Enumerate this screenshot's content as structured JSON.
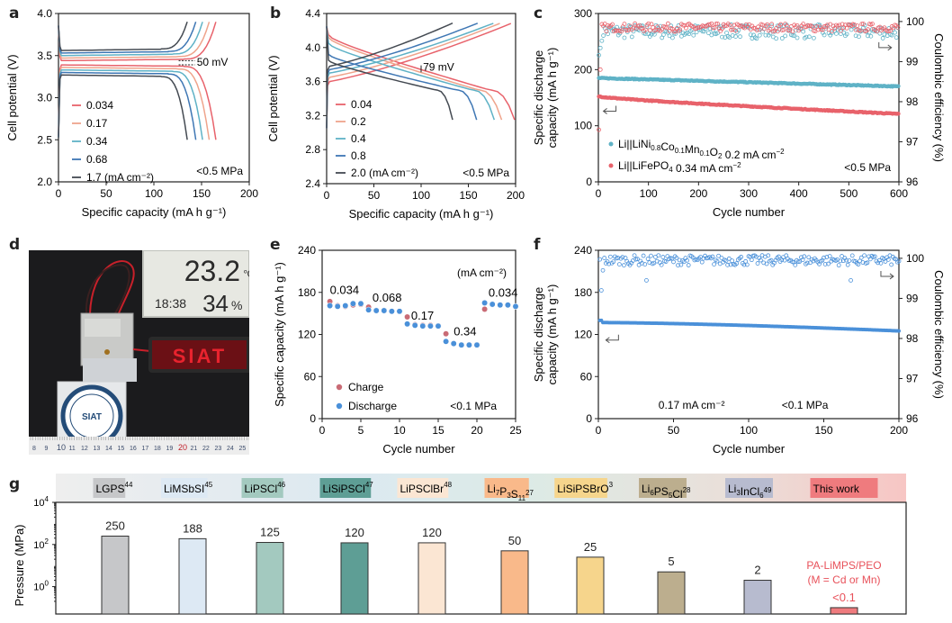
{
  "panel_labels": {
    "a": "a",
    "b": "b",
    "c": "c",
    "d": "d",
    "e": "e",
    "f": "f",
    "g": "g"
  },
  "chart_data": [
    {
      "id": "a",
      "type": "line",
      "xlabel": "Specific capacity (mA h g⁻¹)",
      "ylabel": "Cell potential (V)",
      "xlim": [
        0,
        200
      ],
      "ylim": [
        2.0,
        4.0
      ],
      "xticks": [
        0,
        50,
        100,
        150,
        200
      ],
      "yticks": [
        2.0,
        2.5,
        3.0,
        3.5,
        4.0
      ],
      "ytick_labels": [
        "2.0",
        "2.5",
        "3.0",
        "3.5",
        "4.0"
      ],
      "legend_position": "bottom-left",
      "legend_unit": "(mA cm⁻²)",
      "condition": "<0.5 MPa",
      "annotation": "50 mV",
      "series": [
        {
          "name": "0.034",
          "color": "#e8626b",
          "capacity": 165,
          "charge_plateau": 3.44,
          "discharge_plateau": 3.39
        },
        {
          "name": "0.17",
          "color": "#efa48c",
          "capacity": 158,
          "charge_plateau": 3.47,
          "discharge_plateau": 3.36
        },
        {
          "name": "0.34",
          "color": "#5fb2c6",
          "capacity": 151,
          "charge_plateau": 3.5,
          "discharge_plateau": 3.33
        },
        {
          "name": "0.68",
          "color": "#3f77b4",
          "capacity": 144,
          "charge_plateau": 3.53,
          "discharge_plateau": 3.3
        },
        {
          "name": "1.7",
          "color": "#444a52",
          "capacity": 135,
          "charge_plateau": 3.56,
          "discharge_plateau": 3.27
        }
      ]
    },
    {
      "id": "b",
      "type": "line",
      "xlabel": "Specific capacity (mA h g⁻¹)",
      "ylabel": "Cell potential (V)",
      "xlim": [
        0,
        200
      ],
      "ylim": [
        2.4,
        4.4
      ],
      "xticks": [
        0,
        50,
        100,
        150,
        200
      ],
      "yticks": [
        2.4,
        2.8,
        3.2,
        3.6,
        4.0,
        4.4
      ],
      "ytick_labels": [
        "2.4",
        "2.8",
        "3.2",
        "3.6",
        "4.0",
        "4.4"
      ],
      "legend_position": "bottom-left",
      "legend_unit": "(mA cm⁻²)",
      "condition": "<0.5 MPa",
      "annotation": "79 mV",
      "series": [
        {
          "name": "0.04",
          "color": "#e8626b",
          "charge_capacity": 199,
          "discharge_capacity": 203,
          "charge_start": 3.6,
          "discharge_start": 4.15
        },
        {
          "name": "0.2",
          "color": "#efa48c",
          "charge_capacity": 187,
          "discharge_capacity": 189,
          "charge_start": 3.65,
          "discharge_start": 4.12
        },
        {
          "name": "0.4",
          "color": "#5fb2c6",
          "charge_capacity": 180,
          "discharge_capacity": 181,
          "charge_start": 3.7,
          "discharge_start": 4.05
        },
        {
          "name": "0.8",
          "color": "#3f77b4",
          "charge_capacity": 163,
          "discharge_capacity": 162,
          "charge_start": 3.74,
          "discharge_start": 3.92
        },
        {
          "name": "2.0",
          "color": "#444a52",
          "charge_capacity": 136,
          "discharge_capacity": 136,
          "charge_start": 3.78,
          "discharge_start": 3.85
        }
      ]
    },
    {
      "id": "c",
      "type": "scatter",
      "xlabel": "Cycle number",
      "ylabel": "Specific discharge capacity (mA h g⁻¹)",
      "ylabel2": "Coulombic efficiency (%)",
      "xlim": [
        0,
        600
      ],
      "ylim": [
        0,
        300
      ],
      "y2lim": [
        96,
        100.2
      ],
      "xticks": [
        0,
        100,
        200,
        300,
        400,
        500,
        600
      ],
      "yticks": [
        0,
        100,
        200,
        300
      ],
      "y2ticks": [
        96,
        97,
        98,
        99,
        100
      ],
      "condition": "<0.5 MPa",
      "legend_position": "bottom-left",
      "series": [
        {
          "name": "Li||LiNi0.8Co0.1Mn0.1O2 0.2 mA cm-2",
          "color": "#5fb2c6",
          "capacity_start": 185,
          "capacity_end": 170,
          "ce_mean": 99.75
        },
        {
          "name": "Li||LiFePO4 0.34 mA cm-2",
          "color": "#e8626b",
          "capacity_start": 153,
          "capacity_end": 121,
          "ce_mean": 99.85
        }
      ]
    },
    {
      "id": "e",
      "type": "scatter",
      "xlabel": "Cycle number",
      "ylabel": "Specific capacity (mA h g⁻¹)",
      "xlim": [
        0,
        25
      ],
      "ylim": [
        0,
        240
      ],
      "xticks": [
        0,
        5,
        10,
        15,
        20,
        25
      ],
      "yticks": [
        0,
        60,
        120,
        180,
        240
      ],
      "condition": "<0.1 MPa",
      "unit_note": "(mA cm⁻²)",
      "rate_labels": [
        {
          "text": "0.034",
          "x": 1,
          "y": 178
        },
        {
          "text": "0.068",
          "x": 6.5,
          "y": 167
        },
        {
          "text": "0.17",
          "x": 11.5,
          "y": 141
        },
        {
          "text": "0.34",
          "x": 17,
          "y": 119
        },
        {
          "text": "0.034",
          "x": 21.5,
          "y": 174
        }
      ],
      "x": [
        1,
        2,
        3,
        4,
        5,
        6,
        7,
        8,
        9,
        10,
        11,
        12,
        13,
        14,
        15,
        16,
        17,
        18,
        19,
        20,
        21,
        22,
        23,
        24,
        25
      ],
      "series": [
        {
          "name": "Charge",
          "color": "#c96b75",
          "values": [
            167,
            161,
            160,
            162,
            163,
            159,
            154,
            154,
            153,
            153,
            145,
            134,
            133,
            133,
            132,
            121,
            107,
            105,
            105,
            105,
            156,
            163,
            162,
            162,
            160
          ]
        },
        {
          "name": "Discharge",
          "color": "#4a90d9",
          "values": [
            161,
            160,
            161,
            164,
            164,
            155,
            154,
            154,
            153,
            153,
            135,
            133,
            132,
            132,
            132,
            110,
            107,
            105,
            105,
            105,
            165,
            163,
            162,
            162,
            160
          ]
        }
      ]
    },
    {
      "id": "f",
      "type": "scatter",
      "xlabel": "Cycle number",
      "ylabel": "Specific discharge capacity (mA h g⁻¹)",
      "ylabel2": "Coulombic efficiency (%)",
      "xlim": [
        0,
        200
      ],
      "ylim": [
        0,
        240
      ],
      "y2lim": [
        96,
        100.2
      ],
      "xticks": [
        0,
        50,
        100,
        150,
        200
      ],
      "yticks": [
        0,
        60,
        120,
        180,
        240
      ],
      "y2ticks": [
        96,
        97,
        98,
        99,
        100
      ],
      "condition": "<0.1 MPa",
      "current_note": "0.17 mA cm⁻²",
      "series": [
        {
          "name": "Discharge capacity",
          "color": "#4a90d9",
          "capacity_start": 140,
          "capacity_end": 125
        },
        {
          "name": "Coulombic efficiency",
          "color": "#4a90d9",
          "ce_mean": 99.95
        }
      ]
    },
    {
      "id": "g",
      "type": "bar",
      "ylabel": "Pressure (MPa)",
      "yscale": "log",
      "ylim": [
        0.05,
        10000
      ],
      "ytick_labels": [
        {
          "base": "10",
          "exp": "4"
        },
        {
          "base": "10",
          "exp": "2"
        },
        {
          "base": "10",
          "exp": "0"
        }
      ],
      "categories": [
        "LGPS",
        "LiMSbSI",
        "LiPSCl",
        "LiSiPSCl",
        "LiPSClBr",
        "Li7P3S11",
        "LiSiPSBrO",
        "Li6PS5Cl",
        "Li3InCl6",
        "This work"
      ],
      "category_labels": [
        {
          "parts": [
            {
              "t": "LGPS"
            },
            {
              "t": "44",
              "sup": true
            }
          ]
        },
        {
          "parts": [
            {
              "t": "LiMSbSI"
            },
            {
              "t": "45",
              "sup": true
            }
          ]
        },
        {
          "parts": [
            {
              "t": "LiPSCl"
            },
            {
              "t": "46",
              "sup": true
            }
          ]
        },
        {
          "parts": [
            {
              "t": "LiSiPSCl"
            },
            {
              "t": "47",
              "sup": true
            }
          ]
        },
        {
          "parts": [
            {
              "t": "LiPSClBr"
            },
            {
              "t": "48",
              "sup": true
            }
          ]
        },
        {
          "parts": [
            {
              "t": "Li"
            },
            {
              "t": "7",
              "sub": true
            },
            {
              "t": "P"
            },
            {
              "t": "3",
              "sub": true
            },
            {
              "t": "S"
            },
            {
              "t": "11",
              "sub": true
            },
            {
              "t": "27",
              "sup": true
            }
          ]
        },
        {
          "parts": [
            {
              "t": "LiSiPSBrO"
            },
            {
              "t": "3",
              "sup": true
            }
          ]
        },
        {
          "parts": [
            {
              "t": "Li"
            },
            {
              "t": "6",
              "sub": true
            },
            {
              "t": "PS"
            },
            {
              "t": "5",
              "sub": true
            },
            {
              "t": "Cl"
            },
            {
              "t": "28",
              "sup": true
            }
          ]
        },
        {
          "parts": [
            {
              "t": "Li"
            },
            {
              "t": "3",
              "sub": true
            },
            {
              "t": "InCl"
            },
            {
              "t": "6",
              "sub": true
            },
            {
              "t": "49",
              "sup": true
            }
          ]
        },
        {
          "parts": [
            {
              "t": "This work"
            }
          ]
        }
      ],
      "values": [
        250,
        188,
        125,
        120,
        120,
        50,
        25,
        5,
        2,
        0.1
      ],
      "value_labels": [
        "250",
        "188",
        "125",
        "120",
        "120",
        "50",
        "25",
        "5",
        "2",
        "<0.1"
      ],
      "colors": [
        "#c6c7c9",
        "#dde9f4",
        "#a3c9bf",
        "#5e9e95",
        "#fbe6d3",
        "#f9b98a",
        "#f6d58c",
        "#bcae8e",
        "#b7bbcf",
        "#ef7b7e"
      ],
      "annotation_line1": "PA-LiMPS/PEO",
      "annotation_line2": "(M = Cd or Mn)",
      "annotation_color": "#e8515a"
    }
  ],
  "photo": {
    "thermometer_temp": "23.2",
    "temp_unit": "℃",
    "time": "18:38",
    "humidity": "34",
    "humidity_unit": "%",
    "led_text": "SIAT",
    "logo_text": "SIAT",
    "ruler_numbers": [
      "8",
      "9",
      "10",
      "11",
      "12",
      "13",
      "14",
      "15",
      "16",
      "17",
      "18",
      "19",
      "20",
      "21",
      "22",
      "23",
      "24",
      "25"
    ]
  }
}
